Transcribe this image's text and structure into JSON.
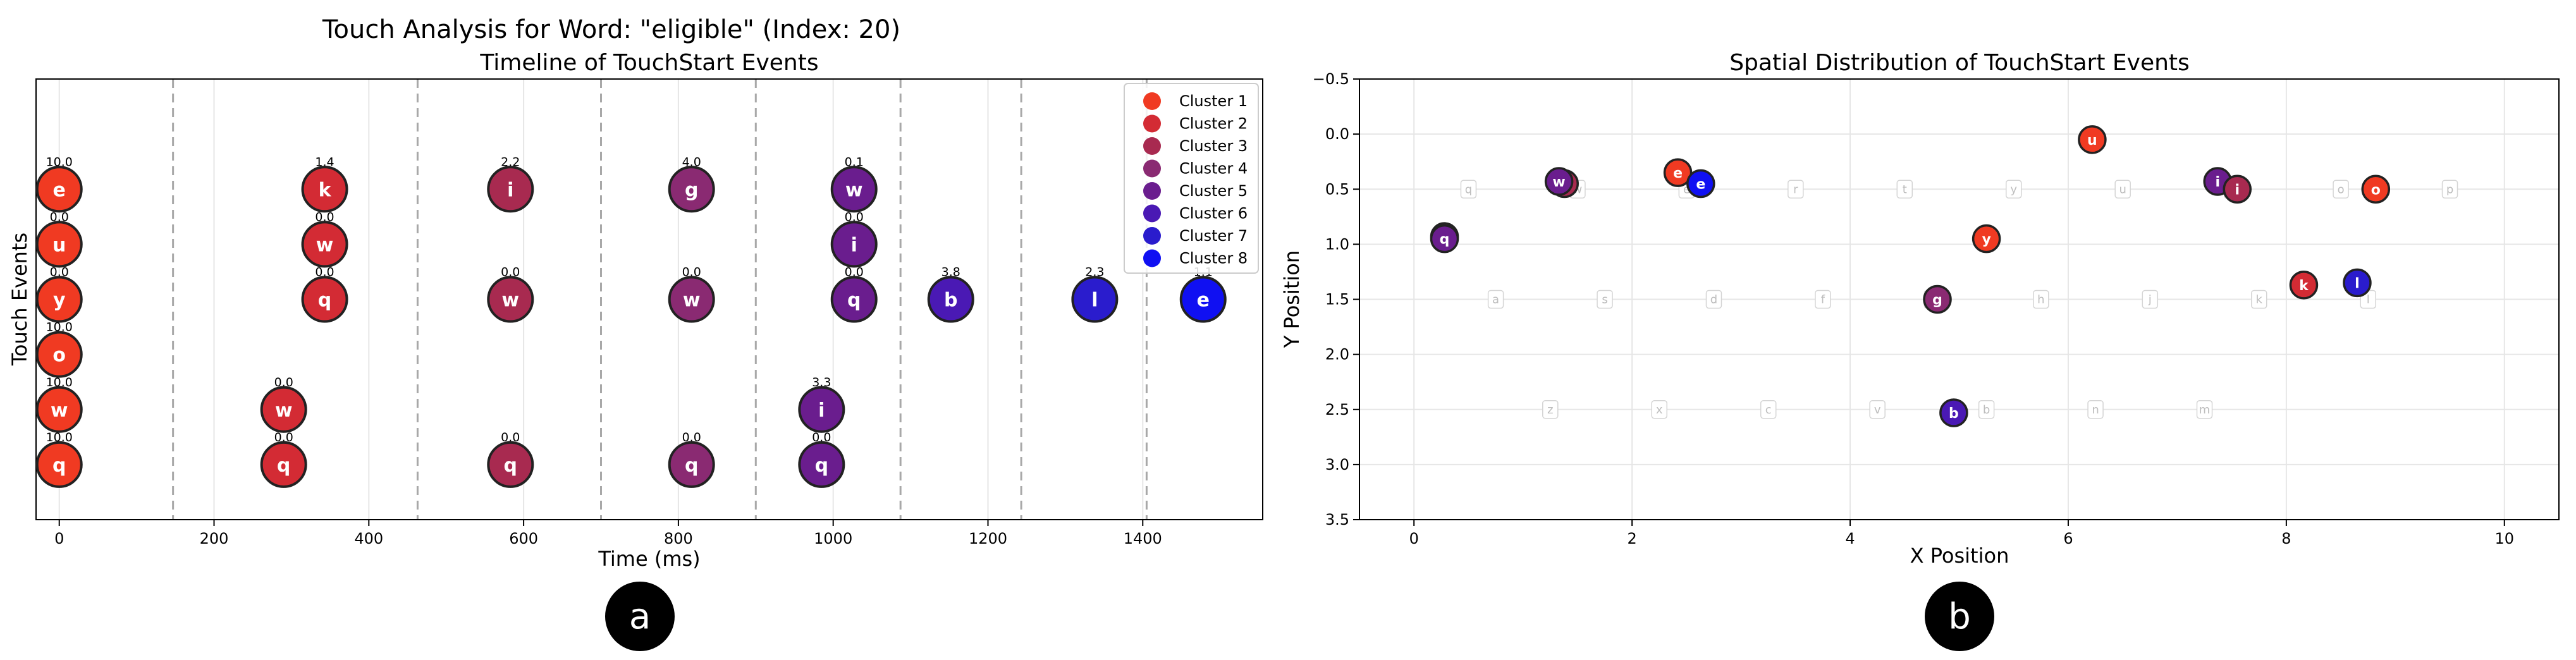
{
  "suptitle": "Touch Analysis for Word: \"eligible\" (Index: 20)",
  "badges": {
    "a": "a",
    "b": "b"
  },
  "clusters": [
    {
      "name": "Cluster 1",
      "color": "#f03a22"
    },
    {
      "name": "Cluster 2",
      "color": "#d32b34"
    },
    {
      "name": "Cluster 3",
      "color": "#a82a50"
    },
    {
      "name": "Cluster 4",
      "color": "#8a2a72"
    },
    {
      "name": "Cluster 5",
      "color": "#6a1d8e"
    },
    {
      "name": "Cluster 6",
      "color": "#4a19b4"
    },
    {
      "name": "Cluster 7",
      "color": "#2a1ccd"
    },
    {
      "name": "Cluster 8",
      "color": "#1010f2"
    }
  ],
  "chart_data": [
    {
      "type": "scatter",
      "title": "Timeline of TouchStart Events",
      "xlabel": "Time (ms)",
      "ylabel": "Touch Events",
      "xlim": [
        -30,
        1555
      ],
      "xticks": [
        0,
        200,
        400,
        600,
        800,
        1000,
        1200,
        1400
      ],
      "ylim": [
        0,
        8
      ],
      "grid": true,
      "legend": "top-right",
      "boundaries": [
        147,
        463,
        700,
        900,
        1087,
        1243,
        1405
      ],
      "points": [
        {
          "t": 0,
          "level": 6,
          "letter": "e",
          "cluster": 1,
          "value": "10.0"
        },
        {
          "t": 0,
          "level": 5,
          "letter": "u",
          "cluster": 1,
          "value": "0.0"
        },
        {
          "t": 0,
          "level": 4,
          "letter": "y",
          "cluster": 1,
          "value": "0.0"
        },
        {
          "t": 0,
          "level": 3,
          "letter": "o",
          "cluster": 1,
          "value": "10.0"
        },
        {
          "t": 0,
          "level": 2,
          "letter": "w",
          "cluster": 1,
          "value": "10.0"
        },
        {
          "t": 0,
          "level": 1,
          "letter": "q",
          "cluster": 1,
          "value": "10.0"
        },
        {
          "t": 290,
          "level": 2,
          "letter": "w",
          "cluster": 2,
          "value": "0.0"
        },
        {
          "t": 290,
          "level": 1,
          "letter": "q",
          "cluster": 2,
          "value": "0.0"
        },
        {
          "t": 343,
          "level": 6,
          "letter": "k",
          "cluster": 2,
          "value": "1.4"
        },
        {
          "t": 343,
          "level": 5,
          "letter": "w",
          "cluster": 2,
          "value": "0.0"
        },
        {
          "t": 343,
          "level": 4,
          "letter": "q",
          "cluster": 2,
          "value": "0.0"
        },
        {
          "t": 583,
          "level": 6,
          "letter": "i",
          "cluster": 3,
          "value": "2.2"
        },
        {
          "t": 583,
          "level": 4,
          "letter": "w",
          "cluster": 3,
          "value": "0.0"
        },
        {
          "t": 583,
          "level": 1,
          "letter": "q",
          "cluster": 3,
          "value": "0.0"
        },
        {
          "t": 817,
          "level": 6,
          "letter": "g",
          "cluster": 4,
          "value": "4.0"
        },
        {
          "t": 817,
          "level": 4,
          "letter": "w",
          "cluster": 4,
          "value": "0.0"
        },
        {
          "t": 817,
          "level": 1,
          "letter": "q",
          "cluster": 4,
          "value": "0.0"
        },
        {
          "t": 985,
          "level": 2,
          "letter": "i",
          "cluster": 5,
          "value": "3.3"
        },
        {
          "t": 985,
          "level": 1,
          "letter": "q",
          "cluster": 5,
          "value": "0.0"
        },
        {
          "t": 1027,
          "level": 6,
          "letter": "w",
          "cluster": 5,
          "value": "0.1"
        },
        {
          "t": 1027,
          "level": 5,
          "letter": "i",
          "cluster": 5,
          "value": "0.0"
        },
        {
          "t": 1027,
          "level": 4,
          "letter": "q",
          "cluster": 5,
          "value": "0.0"
        },
        {
          "t": 1152,
          "level": 4,
          "letter": "b",
          "cluster": 6,
          "value": "3.8"
        },
        {
          "t": 1338,
          "level": 4,
          "letter": "l",
          "cluster": 7,
          "value": "2.3"
        },
        {
          "t": 1478,
          "level": 4,
          "letter": "e",
          "cluster": 8,
          "value": "1.1"
        }
      ]
    },
    {
      "type": "scatter",
      "title": "Spatial Distribution of TouchStart Events",
      "xlabel": "X Position",
      "ylabel": "Y Position",
      "xlim": [
        -0.5,
        10.5
      ],
      "ylim": [
        3.5,
        -0.5
      ],
      "xticks": [
        0,
        2,
        4,
        6,
        8,
        10
      ],
      "yticks": [
        -0.5,
        0.0,
        0.5,
        1.0,
        1.5,
        2.0,
        2.5,
        3.0,
        3.5
      ],
      "grid": true,
      "keyboard": [
        {
          "x": 0.5,
          "y": 0.5,
          "key": "q"
        },
        {
          "x": 1.5,
          "y": 0.5,
          "key": "w"
        },
        {
          "x": 2.5,
          "y": 0.5,
          "key": "e"
        },
        {
          "x": 3.5,
          "y": 0.5,
          "key": "r"
        },
        {
          "x": 4.5,
          "y": 0.5,
          "key": "t"
        },
        {
          "x": 5.5,
          "y": 0.5,
          "key": "y"
        },
        {
          "x": 6.5,
          "y": 0.5,
          "key": "u"
        },
        {
          "x": 7.5,
          "y": 0.5,
          "key": "i"
        },
        {
          "x": 8.5,
          "y": 0.5,
          "key": "o"
        },
        {
          "x": 9.5,
          "y": 0.5,
          "key": "p"
        },
        {
          "x": 0.75,
          "y": 1.5,
          "key": "a"
        },
        {
          "x": 1.75,
          "y": 1.5,
          "key": "s"
        },
        {
          "x": 2.75,
          "y": 1.5,
          "key": "d"
        },
        {
          "x": 3.75,
          "y": 1.5,
          "key": "f"
        },
        {
          "x": 4.75,
          "y": 1.5,
          "key": "g"
        },
        {
          "x": 5.75,
          "y": 1.5,
          "key": "h"
        },
        {
          "x": 6.75,
          "y": 1.5,
          "key": "j"
        },
        {
          "x": 7.75,
          "y": 1.5,
          "key": "k"
        },
        {
          "x": 8.75,
          "y": 1.5,
          "key": "l"
        },
        {
          "x": 1.25,
          "y": 2.5,
          "key": "z"
        },
        {
          "x": 2.25,
          "y": 2.5,
          "key": "x"
        },
        {
          "x": 3.25,
          "y": 2.5,
          "key": "c"
        },
        {
          "x": 4.25,
          "y": 2.5,
          "key": "v"
        },
        {
          "x": 5.25,
          "y": 2.5,
          "key": "b"
        },
        {
          "x": 6.25,
          "y": 2.5,
          "key": "n"
        },
        {
          "x": 7.25,
          "y": 2.5,
          "key": "m"
        }
      ],
      "points": [
        {
          "x": 0.28,
          "y": 0.93,
          "letter": "q",
          "cluster": 4
        },
        {
          "x": 0.28,
          "y": 0.95,
          "letter": "q",
          "cluster": 5
        },
        {
          "x": 1.38,
          "y": 0.45,
          "letter": "w",
          "cluster": 3
        },
        {
          "x": 1.33,
          "y": 0.43,
          "letter": "w",
          "cluster": 5
        },
        {
          "x": 2.42,
          "y": 0.35,
          "letter": "e",
          "cluster": 1
        },
        {
          "x": 2.63,
          "y": 0.45,
          "letter": "e",
          "cluster": 8
        },
        {
          "x": 6.22,
          "y": 0.05,
          "letter": "u",
          "cluster": 1
        },
        {
          "x": 5.25,
          "y": 0.95,
          "letter": "y",
          "cluster": 1
        },
        {
          "x": 7.37,
          "y": 0.43,
          "letter": "i",
          "cluster": 5
        },
        {
          "x": 7.55,
          "y": 0.5,
          "letter": "i",
          "cluster": 3
        },
        {
          "x": 8.82,
          "y": 0.5,
          "letter": "o",
          "cluster": 1
        },
        {
          "x": 8.16,
          "y": 1.37,
          "letter": "k",
          "cluster": 2
        },
        {
          "x": 8.65,
          "y": 1.35,
          "letter": "l",
          "cluster": 7
        },
        {
          "x": 4.8,
          "y": 1.5,
          "letter": "g",
          "cluster": 4
        },
        {
          "x": 4.95,
          "y": 2.53,
          "letter": "b",
          "cluster": 6
        }
      ]
    }
  ]
}
